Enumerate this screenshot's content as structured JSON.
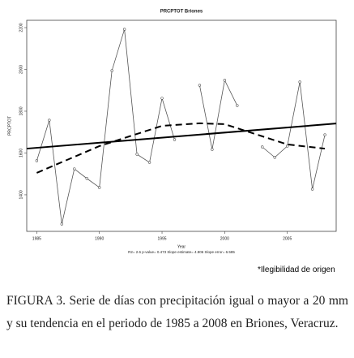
{
  "chart_data": {
    "type": "line",
    "title": "PRCPTOT  Briones",
    "x_label": "Year",
    "y_label": "PRCPTOT",
    "stats_text": "R2= 2.6  p-value= 0.473  Slope estimate= 4.806  Slope error= 6.585",
    "xlim": [
      1984.2,
      2008.9
    ],
    "xticks": [
      1985,
      1990,
      1995,
      2000,
      2005
    ],
    "ylim": [
      1225,
      2235
    ],
    "yticks": [
      1400,
      1600,
      1800,
      2000,
      2200
    ],
    "series": [
      {
        "color": "#555555",
        "style": "solid",
        "width": 0.8,
        "markers": true,
        "x": [
          1985,
          1986,
          1987,
          1988,
          1989,
          1990,
          1991,
          1992,
          1993,
          1994,
          1995,
          1996,
          1997,
          1998,
          1999,
          2000,
          2001,
          2002,
          2003,
          2004,
          2005,
          2006,
          2007,
          2008
        ],
        "values": [
          1563,
          1757,
          1260,
          1524,
          1478,
          1435,
          1994,
          2192,
          1594,
          1555,
          1862,
          1664,
          null,
          1924,
          1617,
          1948,
          1827,
          null,
          1629,
          1579,
          1633,
          1940,
          1427,
          1687
        ]
      },
      {
        "color": "#000000",
        "style": "solid",
        "width": 2,
        "markers": false,
        "x": [
          1984.2,
          2008.9
        ],
        "values": [
          1621,
          1741
        ]
      },
      {
        "color": "#000000",
        "style": "dashed",
        "width": 2,
        "markers": false,
        "x": [
          1985,
          1990,
          1995,
          1998,
          2000,
          2003,
          2005,
          2008
        ],
        "values": [
          1505,
          1633,
          1730,
          1742,
          1738,
          1680,
          1641,
          1621
        ]
      }
    ]
  },
  "note": "*Ilegibilidad de origen",
  "caption": "FIGURA 3. Serie de días con precipitación igual o mayor a 20 mm y su tendencia en el periodo de 1985 a 2008 en Briones, Veracruz."
}
